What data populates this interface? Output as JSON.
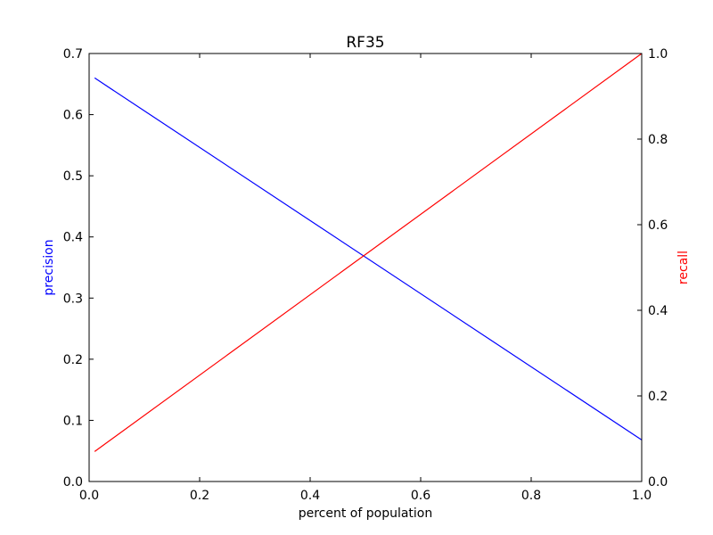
{
  "chart_data": {
    "type": "line",
    "title": "RF35",
    "xlabel": "percent of population",
    "ylabel_left": "precision",
    "ylabel_right": "recall",
    "xlim": [
      0,
      1.0
    ],
    "ylim_left": [
      0,
      0.7
    ],
    "ylim_right": [
      0,
      1.0
    ],
    "x_ticks": [
      "0.0",
      "0.2",
      "0.4",
      "0.6",
      "0.8",
      "1.0"
    ],
    "y_left_ticks": [
      "0.0",
      "0.1",
      "0.2",
      "0.3",
      "0.4",
      "0.5",
      "0.6",
      "0.7"
    ],
    "y_right_ticks": [
      "0.0",
      "0.2",
      "0.4",
      "0.6",
      "0.8",
      "1.0"
    ],
    "grid": false,
    "series": [
      {
        "name": "precision",
        "axis": "left",
        "color": "#0000ff",
        "x": [
          0.01,
          1.0
        ],
        "y": [
          0.66,
          0.068
        ]
      },
      {
        "name": "recall",
        "axis": "right",
        "color": "#ff0000",
        "x": [
          0.01,
          1.0
        ],
        "y": [
          0.07,
          1.0
        ]
      }
    ],
    "colors": {
      "left_axis_label": "#0000ff",
      "right_axis_label": "#ff0000",
      "frame": "#000000"
    }
  }
}
